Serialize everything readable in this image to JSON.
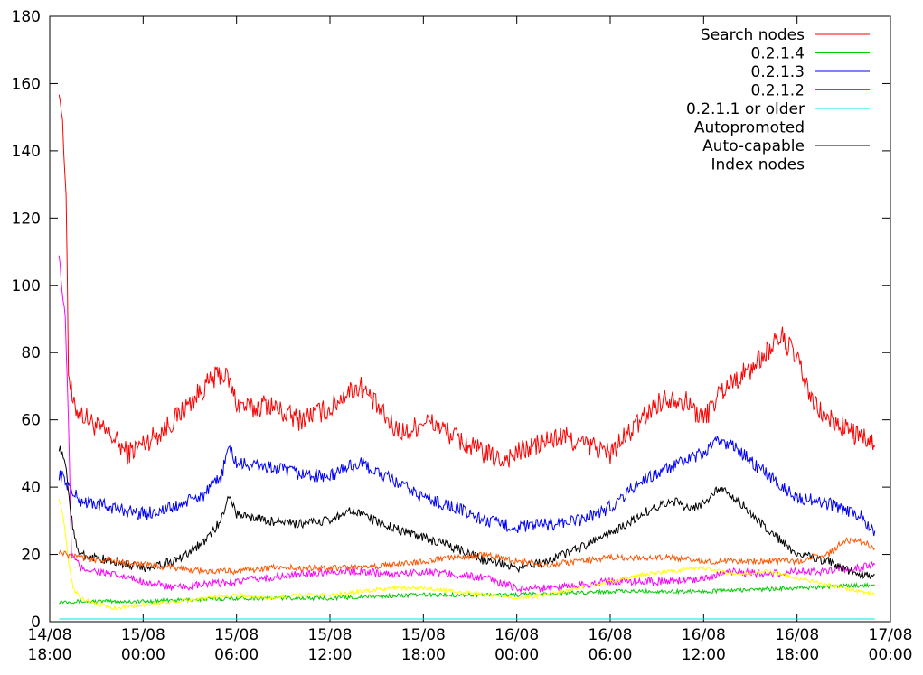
{
  "chart_data": {
    "type": "line",
    "title": "",
    "xlabel": "",
    "ylabel": "",
    "ylim": [
      0,
      180
    ],
    "yticks": [
      0,
      20,
      40,
      60,
      80,
      100,
      120,
      140,
      160,
      180
    ],
    "xlim_hours": [
      0,
      54
    ],
    "xticks": [
      {
        "at": 0,
        "line1": "14/08",
        "line2": "18:00"
      },
      {
        "at": 6,
        "line1": "15/08",
        "line2": "00:00"
      },
      {
        "at": 12,
        "line1": "15/08",
        "line2": "06:00"
      },
      {
        "at": 18,
        "line1": "15/08",
        "line2": "12:00"
      },
      {
        "at": 24,
        "line1": "15/08",
        "line2": "18:00"
      },
      {
        "at": 30,
        "line1": "16/08",
        "line2": "00:00"
      },
      {
        "at": 36,
        "line1": "16/08",
        "line2": "06:00"
      },
      {
        "at": 42,
        "line1": "16/08",
        "line2": "12:00"
      },
      {
        "at": 48,
        "line1": "16/08",
        "line2": "18:00"
      },
      {
        "at": 54,
        "line1": "17/08",
        "line2": "00:00"
      }
    ],
    "legend_position": "top-right",
    "grid": false,
    "series": [
      {
        "name": "Search nodes",
        "color": "#ff0000",
        "x": [
          0.6,
          0.75,
          0.9,
          1.05,
          1.2,
          1.5,
          2,
          3,
          4,
          5,
          6,
          7,
          8,
          9,
          10,
          11,
          11.5,
          12,
          13,
          14,
          15,
          16,
          17,
          18,
          19,
          20,
          21,
          22,
          23,
          24,
          25,
          26,
          27,
          28,
          29,
          30,
          31,
          32,
          33,
          34,
          35,
          36,
          37,
          38,
          39,
          40,
          41,
          42,
          43,
          44,
          45,
          46,
          47,
          48,
          49,
          50,
          51,
          52,
          53
        ],
        "y": [
          160,
          152,
          140,
          130,
          75,
          64,
          62,
          58,
          55,
          50,
          53,
          56,
          60,
          65,
          70,
          74,
          72,
          65,
          63,
          65,
          62,
          60,
          62,
          63,
          68,
          70,
          64,
          58,
          56,
          60,
          58,
          55,
          52,
          50,
          48,
          50,
          52,
          54,
          55,
          53,
          52,
          50,
          55,
          60,
          65,
          67,
          65,
          60,
          68,
          72,
          75,
          80,
          85,
          78,
          65,
          60,
          58,
          55,
          52
        ]
      },
      {
        "name": "0.2.1.4",
        "color": "#00cc00",
        "x": [
          0.6,
          6,
          12,
          18,
          24,
          30,
          36,
          42,
          48,
          53
        ],
        "y": [
          6,
          6,
          7,
          7,
          8,
          8,
          9,
          9,
          10,
          11
        ]
      },
      {
        "name": "0.2.1.3",
        "color": "#0000ff",
        "x": [
          0.6,
          1,
          1.5,
          2,
          4,
          6,
          8,
          10,
          11,
          11.5,
          12,
          14,
          16,
          18,
          19,
          20,
          22,
          24,
          26,
          28,
          30,
          32,
          34,
          36,
          38,
          40,
          41,
          42,
          43,
          44,
          46,
          48,
          50,
          52,
          53
        ],
        "y": [
          44,
          42,
          38,
          36,
          34,
          32,
          34,
          38,
          43,
          52,
          47,
          46,
          44,
          43,
          46,
          47,
          42,
          37,
          34,
          30,
          28,
          29,
          30,
          34,
          42,
          46,
          48,
          50,
          54,
          52,
          44,
          37,
          35,
          32,
          27
        ]
      },
      {
        "name": "0.2.1.2",
        "color": "#ff00ff",
        "x": [
          0.6,
          0.8,
          1,
          1.2,
          1.4,
          2,
          4,
          6,
          8,
          10,
          12,
          14,
          16,
          18,
          20,
          22,
          24,
          26,
          28,
          30,
          32,
          34,
          36,
          38,
          40,
          42,
          44,
          46,
          48,
          50,
          52,
          53
        ],
        "y": [
          110,
          98,
          90,
          60,
          20,
          16,
          14,
          12,
          10,
          11,
          12,
          13,
          14,
          15,
          15,
          14,
          15,
          14,
          13,
          10,
          10,
          11,
          12,
          12,
          12,
          13,
          15,
          14,
          15,
          15,
          16,
          17
        ]
      },
      {
        "name": "0.2.1.1 or older",
        "color": "#00e5e5",
        "x": [
          0.6,
          53
        ],
        "y": [
          0.8,
          0.8
        ]
      },
      {
        "name": "Autopromoted",
        "color": "#ffff00",
        "x": [
          0.6,
          0.9,
          1.2,
          1.5,
          2,
          4,
          6,
          8,
          10,
          12,
          14,
          16,
          18,
          20,
          22,
          24,
          26,
          28,
          30,
          32,
          34,
          36,
          38,
          40,
          42,
          44,
          46,
          48,
          50,
          52,
          53
        ],
        "y": [
          37,
          30,
          18,
          10,
          7,
          4,
          5,
          6,
          7,
          8,
          7,
          8,
          8,
          9,
          10,
          10,
          9,
          8,
          7,
          8,
          10,
          12,
          14,
          15,
          16,
          14,
          15,
          13,
          11,
          9,
          8
        ]
      },
      {
        "name": "Auto-capable",
        "color": "#000000",
        "x": [
          0.6,
          1,
          1.3,
          1.6,
          2,
          4,
          6,
          8,
          10,
          11,
          11.5,
          12,
          14,
          16,
          18,
          19,
          20,
          22,
          24,
          26,
          28,
          30,
          32,
          34,
          36,
          38,
          40,
          41,
          42,
          43,
          44,
          46,
          48,
          50,
          52,
          53
        ],
        "y": [
          52,
          47,
          35,
          24,
          20,
          18,
          16,
          18,
          24,
          30,
          38,
          32,
          30,
          29,
          30,
          33,
          32,
          28,
          25,
          22,
          18,
          16,
          18,
          22,
          26,
          32,
          36,
          34,
          35,
          40,
          37,
          28,
          20,
          18,
          14,
          14
        ]
      },
      {
        "name": "Index nodes",
        "color": "#ff5500",
        "x": [
          0.6,
          1,
          2,
          4,
          6,
          8,
          10,
          12,
          14,
          16,
          18,
          20,
          22,
          24,
          26,
          28,
          30,
          32,
          34,
          36,
          38,
          40,
          42,
          44,
          46,
          48,
          50,
          51,
          52,
          53
        ],
        "y": [
          21,
          20,
          19,
          18,
          17,
          16,
          15,
          15,
          16,
          16,
          16,
          16,
          17,
          18,
          19,
          20,
          18,
          17,
          18,
          19,
          19,
          19,
          18,
          18,
          18,
          18,
          20,
          24,
          24,
          22
        ]
      }
    ]
  }
}
